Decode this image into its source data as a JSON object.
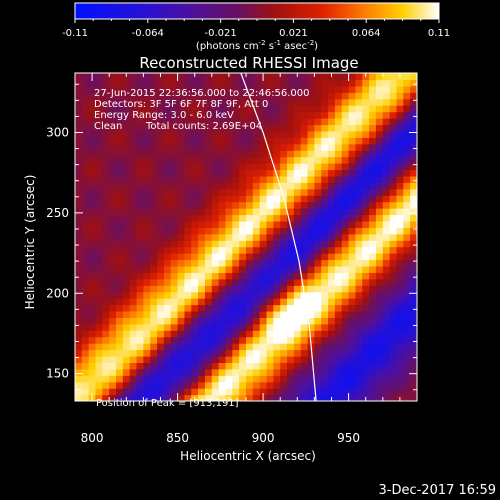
{
  "chart_data": {
    "type": "heatmap",
    "title": "Reconstructed RHESSI Image",
    "xlabel": "Heliocentric X (arcsec)",
    "ylabel": "Heliocentric Y (arcsec)",
    "xlim": [
      790,
      990
    ],
    "ylim": [
      133,
      337
    ],
    "xticks": [
      800,
      850,
      900,
      950
    ],
    "yticks": [
      150,
      200,
      250,
      300
    ],
    "colorbar": {
      "range": [
        -0.11,
        0.11
      ],
      "ticks": [
        "-0.11",
        "-0.064",
        "-0.021",
        "0.021",
        "0.064",
        "0.11"
      ],
      "unit_parts": [
        "(photons cm",
        "-2",
        " s",
        "-1",
        " asec",
        "-2",
        ")"
      ]
    },
    "annotations": {
      "line1": "27-Jun-2015 22:36:56.000 to 22:46:56.000",
      "line2": "Detectors: 3F 5F 6F 7F 8F 9F, Att 0",
      "line3": "Energy Range: 3.0 - 6.0 keV",
      "line4_a": "Clean",
      "line4_b": "Total counts: 2.69E+04",
      "peak": "Position of Peak = [913,191]"
    },
    "peak_position": [
      913,
      191
    ],
    "limb_curve": [
      [
        887,
        337
      ],
      [
        900,
        300
      ],
      [
        912,
        260
      ],
      [
        921,
        220
      ],
      [
        927,
        180
      ],
      [
        931,
        133
      ]
    ],
    "intensity_model": {
      "bands": [
        {
          "amplitude": 0.105,
          "offset": 70,
          "width": 26
        },
        {
          "amplitude": 0.11,
          "offset": -15,
          "width": 24
        }
      ],
      "trough_amplitude": -0.09,
      "trough_offset": 28,
      "trough_width": 22,
      "band_slope": 1.05
    },
    "footer_date": "3-Dec-2017 16:59"
  }
}
